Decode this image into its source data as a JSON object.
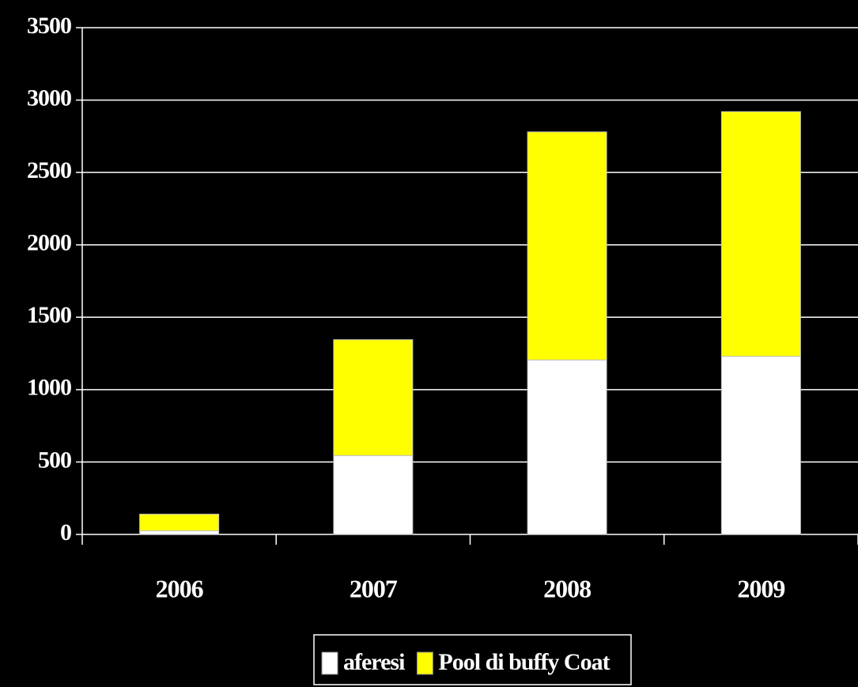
{
  "chart_data": {
    "type": "bar",
    "stacked": true,
    "categories": [
      "2006",
      "2007",
      "2008",
      "2009"
    ],
    "series": [
      {
        "name": "aferesi",
        "color": "#ffffff",
        "values": [
          25,
          545,
          1205,
          1230
        ]
      },
      {
        "name": "Pool di buffy Coat",
        "color": "#ffff00",
        "values": [
          115,
          800,
          1575,
          1690
        ]
      }
    ],
    "ylim": [
      0,
      3500
    ],
    "yticks": [
      0,
      500,
      1000,
      1500,
      2000,
      2500,
      3000,
      3500
    ],
    "grid": true,
    "legend": "bottom"
  }
}
